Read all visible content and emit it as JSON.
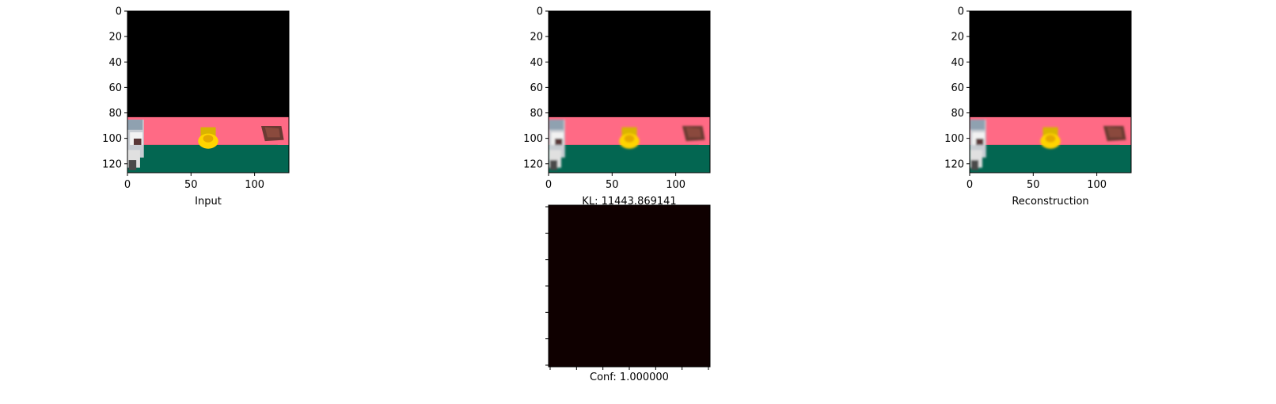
{
  "chart_data": [
    {
      "type": "image",
      "panel": "input",
      "xlabel": "Input",
      "xlim": [
        0,
        127
      ],
      "ylim": [
        127,
        0
      ],
      "xticks": [
        0,
        50,
        100
      ],
      "yticks": [
        0,
        20,
        40,
        60,
        80,
        100,
        120
      ],
      "scene": {
        "sky_color": "#000000",
        "band_color": "#ff6a85",
        "ground_color": "#036651",
        "band_top_row": 84,
        "ground_top_row": 106,
        "objects": [
          "agent",
          "yellow-object",
          "brown-object"
        ]
      }
    },
    {
      "type": "image",
      "panel": "kl",
      "xlabel": "KL: 11443.869141",
      "xlim": [
        0,
        127
      ],
      "ylim": [
        127,
        0
      ],
      "xticks": [
        0,
        50,
        100
      ],
      "yticks": [
        0,
        20,
        40,
        60,
        80,
        100,
        120
      ]
    },
    {
      "type": "image",
      "panel": "reconstruction",
      "xlabel": "Reconstruction",
      "xlim": [
        0,
        127
      ],
      "ylim": [
        127,
        0
      ],
      "xticks": [
        0,
        50,
        100
      ],
      "yticks": [
        0,
        20,
        40,
        60,
        80,
        100,
        120
      ]
    },
    {
      "type": "heatmap",
      "panel": "confidence",
      "xlabel": "Conf: 1.000000",
      "fill_color": "#0f0000",
      "tick_labels": false
    }
  ]
}
